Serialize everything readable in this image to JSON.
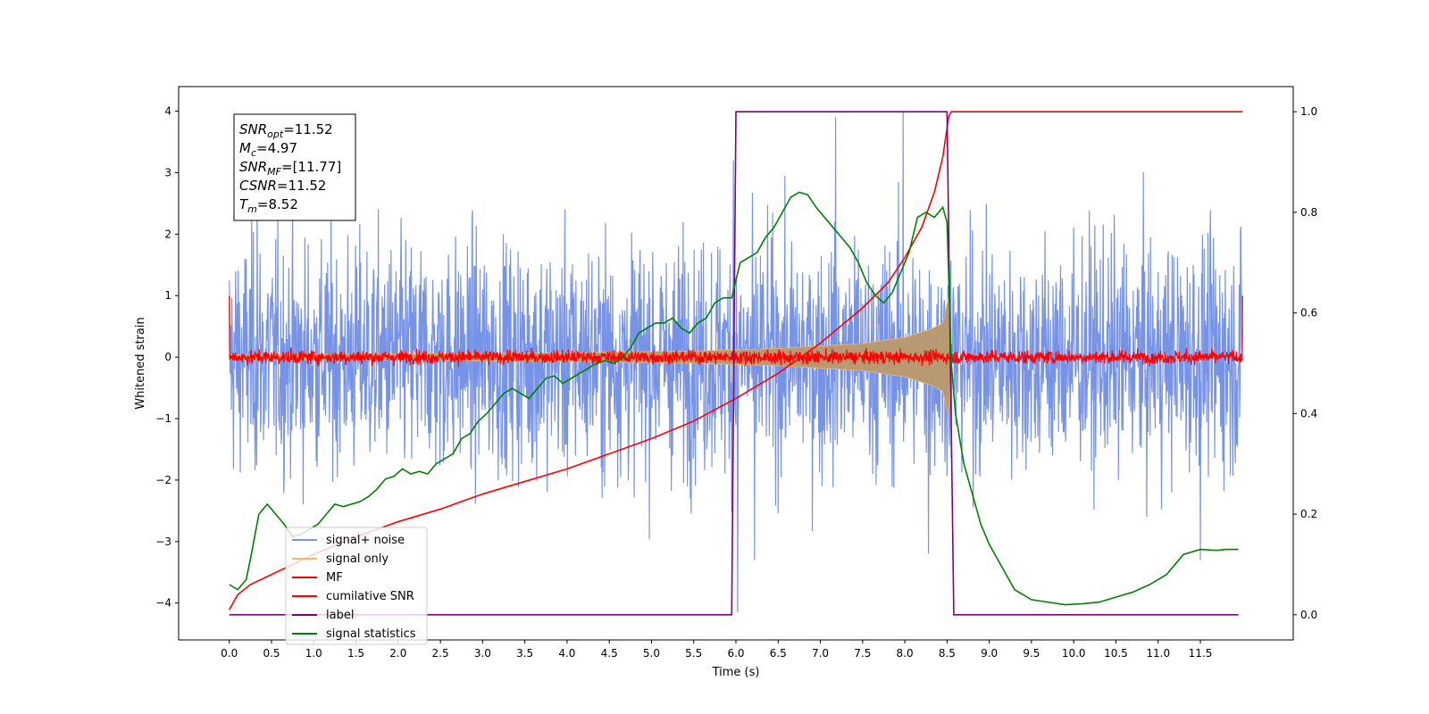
{
  "chart_data": {
    "type": "line",
    "title": "",
    "xlabel": "Time (s)",
    "ylabel_left": "Whitened strain",
    "ylabel_right": "",
    "xlim": [
      -0.6,
      12.6
    ],
    "ylim_left": [
      -4.6,
      4.4
    ],
    "ylim_right": [
      -0.05,
      1.05
    ],
    "x_ticks": [
      0.0,
      0.5,
      1.0,
      1.5,
      2.0,
      2.5,
      3.0,
      3.5,
      4.0,
      4.5,
      5.0,
      5.5,
      6.0,
      6.5,
      7.0,
      7.5,
      8.0,
      8.5,
      9.0,
      9.5,
      10.0,
      10.5,
      11.0,
      11.5
    ],
    "x_tick_labels": [
      "0.0",
      "0.5",
      "1.0",
      "1.5",
      "2.0",
      "2.5",
      "3.0",
      "3.5",
      "4.0",
      "4.5",
      "5.0",
      "5.5",
      "6.0",
      "6.5",
      "7.0",
      "7.5",
      "8.0",
      "8.5",
      "9.0",
      "9.5",
      "10.0",
      "10.5",
      "11.0",
      "11.5"
    ],
    "y_ticks_left": [
      -4,
      -3,
      -2,
      -1,
      0,
      1,
      2,
      3,
      4
    ],
    "y_tick_labels_left": [
      "−4",
      "−3",
      "−2",
      "−1",
      "0",
      "1",
      "2",
      "3",
      "4"
    ],
    "y_ticks_right": [
      0.0,
      0.2,
      0.4,
      0.6,
      0.8,
      1.0
    ],
    "y_tick_labels_right": [
      "0.0",
      "0.2",
      "0.4",
      "0.6",
      "0.8",
      "1.0"
    ],
    "grid": false,
    "legend_position": "lower-left",
    "annotation_box": {
      "position": "top-left",
      "lines": [
        {
          "base": "SNR",
          "sub": "opt",
          "value": "=11.52"
        },
        {
          "base": "M",
          "sub": "c",
          "value": "=4.97"
        },
        {
          "base": "SNR",
          "sub": "MF",
          "value": "=[11.77]"
        },
        {
          "base": "CSNR",
          "sub": "",
          "value": "=11.52"
        },
        {
          "base": "T",
          "sub": "m",
          "value": "=8.52"
        }
      ]
    },
    "series": [
      {
        "name": "signal+ noise",
        "color": "#7793e8",
        "axis": "left",
        "kind": "noise",
        "x_range": [
          0.0,
          12.0
        ],
        "typical_amplitude": 1.7,
        "peak_values": [
          {
            "x": 6.02,
            "y": -4.15
          },
          {
            "x": 7.98,
            "y": 4.0
          },
          {
            "x": 7.18,
            "y": 3.9
          },
          {
            "x": 6.22,
            "y": -3.3
          },
          {
            "x": 8.28,
            "y": -3.2
          },
          {
            "x": 11.5,
            "y": -3.3
          },
          {
            "x": 0.33,
            "y": 2.7
          },
          {
            "x": 5.97,
            "y": 3.2
          }
        ]
      },
      {
        "name": "signal only",
        "color": "#f5b56b",
        "axis": "left",
        "kind": "chirp",
        "envelope": [
          [
            0.0,
            0.04
          ],
          [
            2.0,
            0.05
          ],
          [
            4.0,
            0.07
          ],
          [
            5.5,
            0.1
          ],
          [
            6.5,
            0.14
          ],
          [
            7.5,
            0.22
          ],
          [
            8.0,
            0.32
          ],
          [
            8.3,
            0.45
          ],
          [
            8.45,
            0.55
          ],
          [
            8.52,
            1.0
          ],
          [
            8.55,
            0.0
          ]
        ]
      },
      {
        "name": "MF",
        "color": "#ff0000",
        "axis": "left",
        "kind": "noise",
        "x_range": [
          0.0,
          12.0
        ],
        "typical_amplitude": 0.1,
        "end_values": [
          {
            "x": 0.0,
            "y": 1.0
          },
          {
            "x": 12.0,
            "y": 1.0
          }
        ]
      },
      {
        "name": "cumilative SNR",
        "color": "#ff0000",
        "axis": "right",
        "x": [
          0.0,
          0.1,
          0.25,
          0.5,
          1.0,
          1.5,
          2.0,
          2.5,
          3.0,
          3.5,
          4.0,
          4.5,
          5.0,
          5.5,
          6.0,
          6.5,
          7.0,
          7.5,
          7.8,
          8.0,
          8.2,
          8.35,
          8.45,
          8.52,
          8.55,
          12.0
        ],
        "y": [
          0.01,
          0.04,
          0.06,
          0.08,
          0.12,
          0.155,
          0.185,
          0.21,
          0.24,
          0.265,
          0.29,
          0.32,
          0.35,
          0.385,
          0.43,
          0.48,
          0.54,
          0.61,
          0.66,
          0.71,
          0.77,
          0.84,
          0.91,
          0.99,
          1.0,
          1.0
        ]
      },
      {
        "name": "label",
        "color": "#800080",
        "axis": "right",
        "x": [
          0.0,
          5.95,
          6.0,
          8.5,
          8.58,
          11.95
        ],
        "y": [
          0.0,
          0.0,
          1.0,
          1.0,
          0.0,
          0.0
        ]
      },
      {
        "name": "signal statistics",
        "color": "#008000",
        "axis": "right",
        "x": [
          0.0,
          0.1,
          0.2,
          0.25,
          0.35,
          0.45,
          0.55,
          0.65,
          0.75,
          0.85,
          0.95,
          1.05,
          1.15,
          1.25,
          1.35,
          1.45,
          1.55,
          1.65,
          1.75,
          1.85,
          1.95,
          2.05,
          2.15,
          2.25,
          2.35,
          2.45,
          2.55,
          2.65,
          2.75,
          2.85,
          2.95,
          3.05,
          3.15,
          3.25,
          3.35,
          3.45,
          3.55,
          3.65,
          3.75,
          3.85,
          3.95,
          4.05,
          4.15,
          4.25,
          4.35,
          4.45,
          4.55,
          4.65,
          4.75,
          4.85,
          4.95,
          5.05,
          5.15,
          5.25,
          5.35,
          5.45,
          5.55,
          5.65,
          5.75,
          5.85,
          5.95,
          6.05,
          6.15,
          6.25,
          6.35,
          6.45,
          6.55,
          6.65,
          6.75,
          6.85,
          6.95,
          7.05,
          7.15,
          7.25,
          7.35,
          7.45,
          7.55,
          7.65,
          7.75,
          7.85,
          7.95,
          8.05,
          8.15,
          8.25,
          8.35,
          8.45,
          8.5,
          8.55,
          8.6,
          8.7,
          8.8,
          8.9,
          9.0,
          9.1,
          9.2,
          9.3,
          9.5,
          9.7,
          9.9,
          10.1,
          10.3,
          10.5,
          10.7,
          10.9,
          11.0,
          11.1,
          11.2,
          11.3,
          11.5,
          11.7,
          11.8,
          11.95
        ],
        "y": [
          0.06,
          0.05,
          0.07,
          0.11,
          0.2,
          0.22,
          0.2,
          0.18,
          0.155,
          0.16,
          0.17,
          0.18,
          0.2,
          0.22,
          0.215,
          0.22,
          0.225,
          0.235,
          0.25,
          0.27,
          0.275,
          0.29,
          0.28,
          0.285,
          0.28,
          0.3,
          0.31,
          0.32,
          0.35,
          0.36,
          0.385,
          0.4,
          0.42,
          0.44,
          0.45,
          0.44,
          0.43,
          0.45,
          0.47,
          0.475,
          0.46,
          0.47,
          0.48,
          0.49,
          0.5,
          0.505,
          0.5,
          0.51,
          0.53,
          0.56,
          0.57,
          0.58,
          0.58,
          0.59,
          0.57,
          0.56,
          0.58,
          0.59,
          0.62,
          0.63,
          0.63,
          0.7,
          0.71,
          0.72,
          0.75,
          0.77,
          0.8,
          0.83,
          0.84,
          0.835,
          0.81,
          0.79,
          0.77,
          0.75,
          0.73,
          0.7,
          0.66,
          0.635,
          0.62,
          0.64,
          0.68,
          0.72,
          0.79,
          0.8,
          0.79,
          0.81,
          0.78,
          0.5,
          0.4,
          0.3,
          0.24,
          0.18,
          0.14,
          0.11,
          0.08,
          0.05,
          0.03,
          0.025,
          0.02,
          0.022,
          0.025,
          0.035,
          0.045,
          0.06,
          0.07,
          0.08,
          0.1,
          0.12,
          0.13,
          0.128,
          0.13,
          0.13
        ]
      }
    ]
  }
}
